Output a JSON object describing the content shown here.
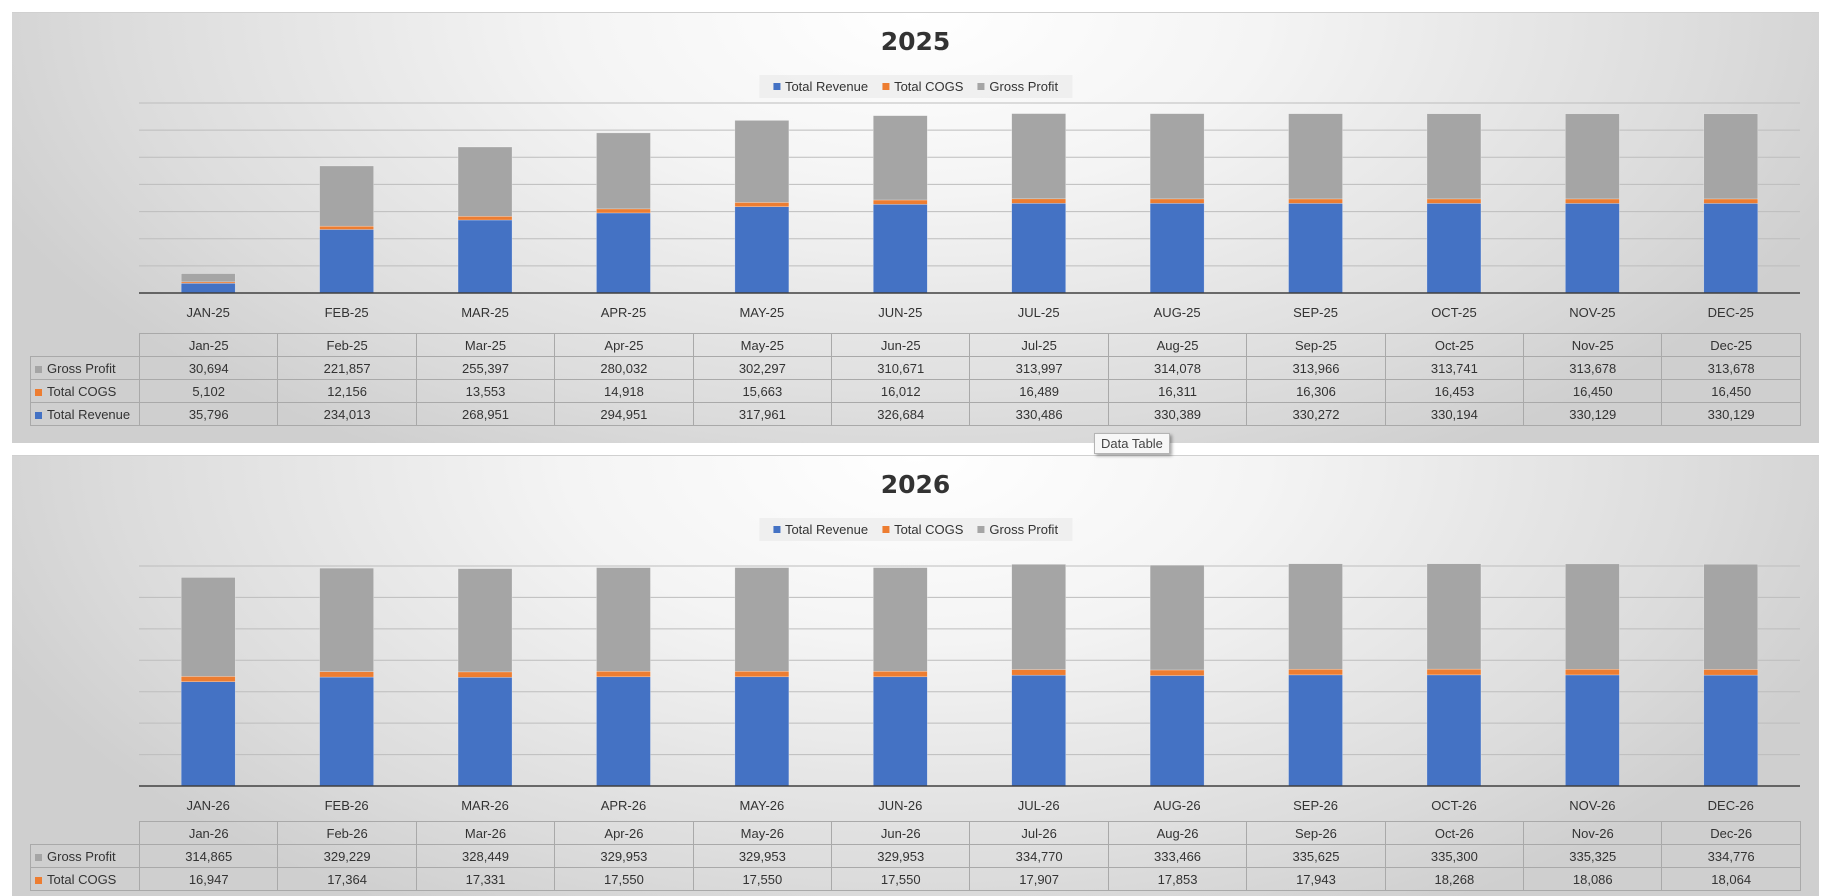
{
  "chart_data": [
    {
      "type": "bar",
      "stacked": true,
      "title": "2025",
      "categories": [
        "JAN-25",
        "FEB-25",
        "MAR-25",
        "APR-25",
        "MAY-25",
        "JUN-25",
        "JUL-25",
        "AUG-25",
        "SEP-25",
        "OCT-25",
        "NOV-25",
        "DEC-25"
      ],
      "table_headers": [
        "Jan-25",
        "Feb-25",
        "Mar-25",
        "Apr-25",
        "May-25",
        "Jun-25",
        "Jul-25",
        "Aug-25",
        "Sep-25",
        "Oct-25",
        "Nov-25",
        "Dec-25"
      ],
      "series": [
        {
          "name": "Total Revenue",
          "color": "#4472c4",
          "values": [
            35796,
            234013,
            268951,
            294951,
            317961,
            326684,
            330486,
            330389,
            330272,
            330194,
            330129,
            330129
          ]
        },
        {
          "name": "Total COGS",
          "color": "#ed7d31",
          "values": [
            5102,
            12156,
            13553,
            14918,
            15663,
            16012,
            16489,
            16311,
            16306,
            16453,
            16450,
            16450
          ]
        },
        {
          "name": "Gross Profit",
          "color": "#a5a5a5",
          "values": [
            30694,
            221857,
            255397,
            280032,
            302297,
            310671,
            313997,
            314078,
            313966,
            313741,
            313678,
            313678
          ]
        }
      ],
      "display": {
        "Total Revenue": [
          "35,796",
          "234,013",
          "268,951",
          "294,951",
          "317,961",
          "326,684",
          "330,486",
          "330,389",
          "330,272",
          "330,194",
          "330,129",
          "330,129"
        ],
        "Total COGS": [
          "5,102",
          "12,156",
          "13,553",
          "14,918",
          "15,663",
          "16,012",
          "16,489",
          "16,311",
          "16,306",
          "16,453",
          "16,450",
          "16,450"
        ],
        "Gross Profit": [
          "30,694",
          "221,857",
          "255,397",
          "280,032",
          "302,297",
          "310,671",
          "313,997",
          "314,078",
          "313,966",
          "313,741",
          "313,678",
          "313,678"
        ]
      },
      "ylim": [
        0,
        700000
      ],
      "grid": true,
      "legend_position": "top"
    },
    {
      "type": "bar",
      "stacked": true,
      "title": "2026",
      "categories": [
        "JAN-26",
        "FEB-26",
        "MAR-26",
        "APR-26",
        "MAY-26",
        "JUN-26",
        "JUL-26",
        "AUG-26",
        "SEP-26",
        "OCT-26",
        "NOV-26",
        "DEC-26"
      ],
      "table_headers": [
        "Jan-26",
        "Feb-26",
        "Mar-26",
        "Apr-26",
        "May-26",
        "Jun-26",
        "Jul-26",
        "Aug-26",
        "Sep-26",
        "Oct-26",
        "Nov-26",
        "Dec-26"
      ],
      "series": [
        {
          "name": "Total Revenue",
          "color": "#4472c4",
          "values": [
            331812,
            346593,
            345780,
            347503,
            347503,
            347503,
            352677,
            351319,
            353568,
            353568,
            353411,
            352840
          ]
        },
        {
          "name": "Total COGS",
          "color": "#ed7d31",
          "values": [
            16947,
            17364,
            17331,
            17550,
            17550,
            17550,
            17907,
            17853,
            17943,
            18268,
            18086,
            18064
          ]
        },
        {
          "name": "Gross Profit",
          "color": "#a5a5a5",
          "values": [
            314865,
            329229,
            328449,
            329953,
            329953,
            329953,
            334770,
            333466,
            335625,
            335300,
            335325,
            334776
          ]
        }
      ],
      "display": {
        "Total COGS": [
          "16,947",
          "17,364",
          "17,331",
          "17,550",
          "17,550",
          "17,550",
          "17,907",
          "17,853",
          "17,943",
          "18,268",
          "18,086",
          "18,064"
        ],
        "Gross Profit": [
          "314,865",
          "329,229",
          "328,449",
          "329,953",
          "329,953",
          "329,953",
          "334,770",
          "333,466",
          "335,625",
          "335,300",
          "335,325",
          "334,776"
        ]
      },
      "ylim": [
        0,
        700000
      ],
      "grid": true,
      "legend_position": "top"
    }
  ],
  "table_row_order": [
    "Gross Profit",
    "Total COGS",
    "Total Revenue"
  ],
  "tooltip": "Data Table"
}
